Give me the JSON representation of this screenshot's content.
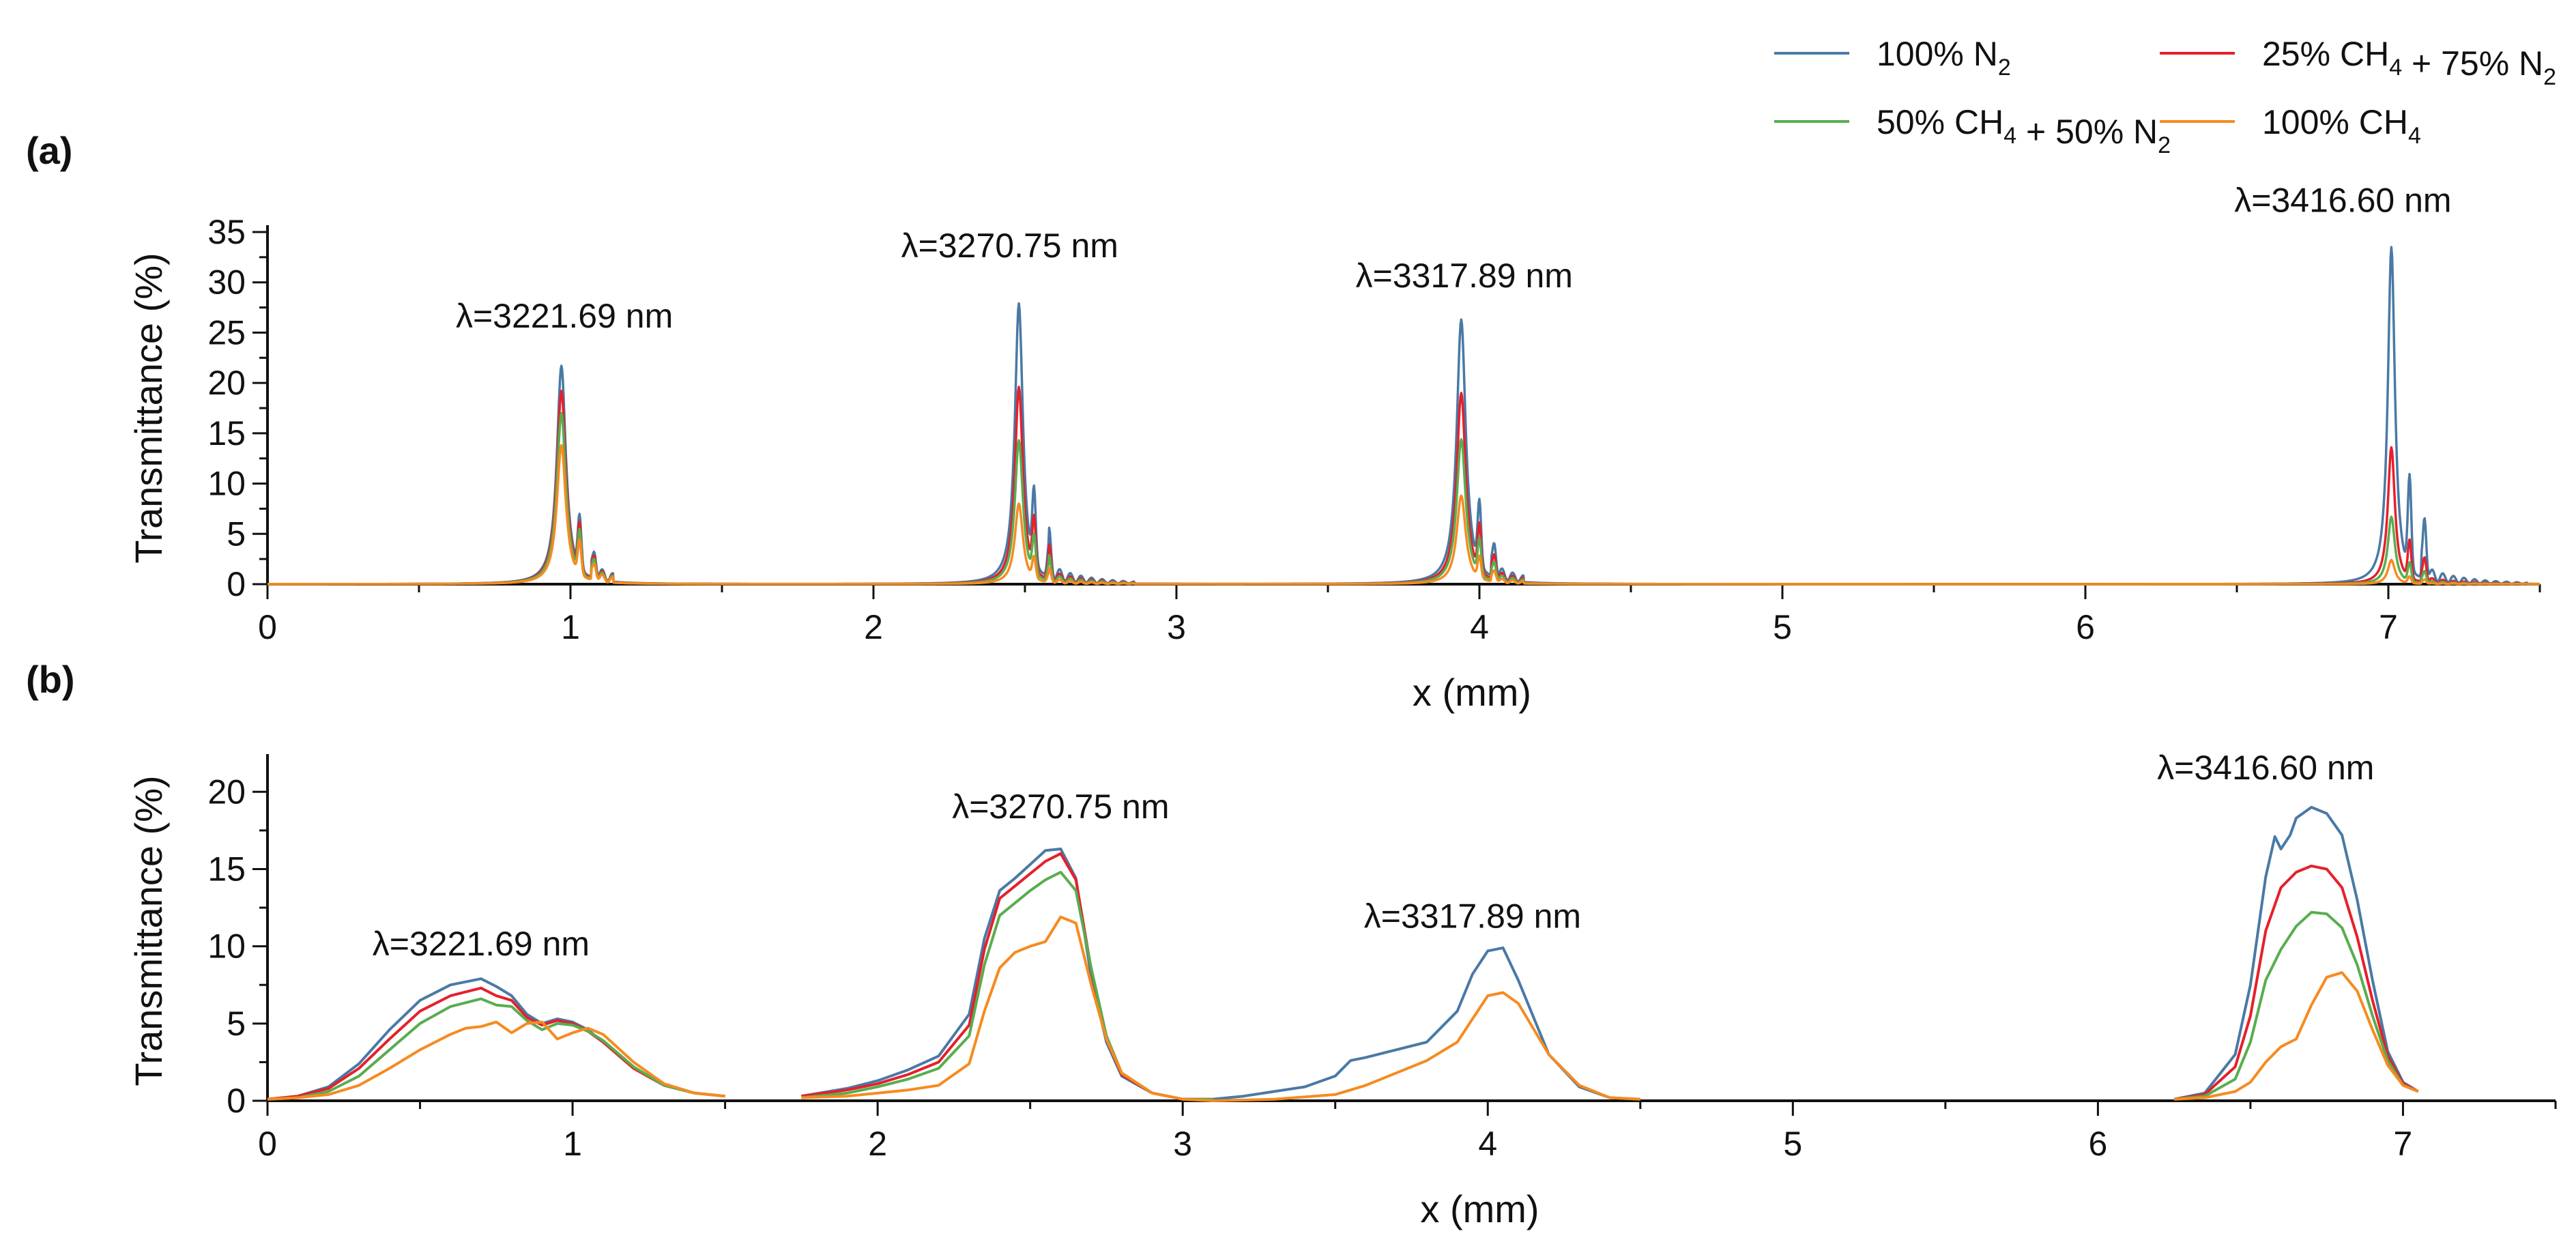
{
  "legend": {
    "items": [
      {
        "key": "n2",
        "prefix": "100% N",
        "sub": "2",
        "suffix": "",
        "color": "#4a79a5"
      },
      {
        "key": "mix25",
        "prefix": "25% CH",
        "sub": "4",
        "suffix": " + 75% N",
        "sub2": "2",
        "color": "#e5202b"
      },
      {
        "key": "mix50",
        "prefix": "50% CH",
        "sub": "4",
        "suffix": " + 50% N",
        "sub2": "2",
        "color": "#58ad4f"
      },
      {
        "key": "ch4",
        "prefix": "100% CH",
        "sub": "4",
        "suffix": "",
        "color": "#f68b1f"
      }
    ]
  },
  "chart_data": [
    {
      "type": "line",
      "panel_label": "(a)",
      "xlabel": "x (mm)",
      "ylabel": "Transmittance (%)",
      "xlim": [
        0,
        7.5
      ],
      "ylim": [
        0,
        35
      ],
      "xticks": [
        0,
        1,
        2,
        3,
        4,
        5,
        6,
        7
      ],
      "yticks": [
        0,
        5,
        10,
        15,
        20,
        25,
        30,
        35
      ],
      "annotations": [
        {
          "text": "λ=3221.69 nm",
          "x": 0.98,
          "y": 25.5
        },
        {
          "text": "λ=3270.75 nm",
          "x": 2.45,
          "y": 32.5
        },
        {
          "text": "λ=3317.89 nm",
          "x": 3.95,
          "y": 29.5
        },
        {
          "text": "λ=3416.60 nm",
          "x": 6.85,
          "y": 37.0
        }
      ],
      "peaks": [
        {
          "center": 0.97,
          "width": 0.018,
          "values": {
            "n2": 21.7,
            "mix25": 19.2,
            "mix50": 17.0,
            "ch4": 13.8
          },
          "side": [
            1.03,
            5.2,
            1.08,
            2.0
          ],
          "ringing": 2
        },
        {
          "center": 2.48,
          "width": 0.016,
          "values": {
            "n2": 27.9,
            "mix25": 19.6,
            "mix50": 14.3,
            "ch4": 8.0
          },
          "side": [
            2.53,
            7.2,
            2.58,
            3.5
          ],
          "ringing": 8
        },
        {
          "center": 3.94,
          "width": 0.018,
          "values": {
            "n2": 26.3,
            "mix25": 19.0,
            "mix50": 14.4,
            "ch4": 8.8
          },
          "side": [
            4.0,
            6.3,
            4.05,
            2.8
          ],
          "ringing": 3
        },
        {
          "center": 7.01,
          "width": 0.014,
          "values": {
            "n2": 33.5,
            "mix25": 13.6,
            "mix50": 6.7,
            "ch4": 2.4
          },
          "side": [
            7.07,
            9.2,
            7.12,
            5.5
          ],
          "ringing": 10
        }
      ]
    },
    {
      "type": "line",
      "panel_label": "(b)",
      "xlabel": "x (mm)",
      "ylabel": "Transmittance (%)",
      "xlim": [
        0,
        7.5
      ],
      "ylim": [
        0,
        22
      ],
      "xticks": [
        0,
        1,
        2,
        3,
        4,
        5,
        6,
        7
      ],
      "yticks": [
        0,
        5,
        10,
        15,
        20
      ],
      "annotations": [
        {
          "text": "λ=3221.69 nm",
          "x": 0.7,
          "y": 9.4
        },
        {
          "text": "λ=3270.75 nm",
          "x": 2.6,
          "y": 18.3
        },
        {
          "text": "λ=3317.89 nm",
          "x": 3.95,
          "y": 11.2
        },
        {
          "text": "λ=3416.60 nm",
          "x": 6.55,
          "y": 20.8
        }
      ],
      "series": [
        {
          "key": "n2",
          "name": "100% N2",
          "segments": [
            {
              "x": [
                0,
                0.1,
                0.2,
                0.3,
                0.4,
                0.5,
                0.6,
                0.7,
                0.75,
                0.8,
                0.85,
                0.9,
                0.95,
                1.0,
                1.05,
                1.1,
                1.2,
                1.3,
                1.4,
                1.5
              ],
              "y": [
                0.1,
                0.3,
                0.9,
                2.4,
                4.6,
                6.5,
                7.5,
                7.9,
                7.4,
                6.8,
                5.6,
                5.0,
                5.3,
                5.1,
                4.6,
                3.8,
                2.1,
                1.0,
                0.5,
                0.3
              ]
            },
            {
              "x": [
                1.75,
                1.9,
                2.0,
                2.1,
                2.2,
                2.3,
                2.35,
                2.4,
                2.45,
                2.5,
                2.55,
                2.6,
                2.65,
                2.7,
                2.75,
                2.8,
                2.9,
                3.0,
                3.1,
                3.2,
                3.3,
                3.4,
                3.5,
                3.55,
                3.6,
                3.7,
                3.8,
                3.9,
                3.95,
                4.0,
                4.05,
                4.1,
                4.2,
                4.3,
                4.4,
                4.5
              ],
              "y": [
                0.3,
                0.8,
                1.3,
                2.0,
                2.9,
                5.6,
                10.5,
                13.6,
                14.4,
                15.3,
                16.2,
                16.3,
                14.4,
                8.0,
                3.8,
                1.6,
                0.5,
                0.1,
                0.1,
                0.3,
                0.6,
                0.9,
                1.6,
                2.6,
                2.8,
                3.3,
                3.8,
                5.8,
                8.2,
                9.7,
                9.9,
                7.8,
                3.0,
                0.9,
                0.2,
                0.1
              ]
            },
            {
              "x": [
                6.25,
                6.35,
                6.45,
                6.5,
                6.55,
                6.58,
                6.6,
                6.63,
                6.65,
                6.7,
                6.75,
                6.8,
                6.85,
                6.9,
                6.95,
                7.0,
                7.05
              ],
              "y": [
                0.1,
                0.5,
                3.0,
                7.5,
                14.5,
                17.1,
                16.3,
                17.2,
                18.3,
                19.0,
                18.6,
                17.2,
                13.0,
                7.8,
                3.2,
                1.2,
                0.6
              ]
            }
          ]
        },
        {
          "key": "mix25",
          "name": "25% CH4 + 75% N2",
          "segments": [
            {
              "x": [
                0,
                0.1,
                0.2,
                0.3,
                0.4,
                0.5,
                0.6,
                0.7,
                0.75,
                0.8,
                0.85,
                0.9,
                0.95,
                1.0,
                1.05,
                1.1,
                1.2,
                1.3,
                1.4,
                1.5
              ],
              "y": [
                0.1,
                0.3,
                0.8,
                2.1,
                4.0,
                5.8,
                6.8,
                7.3,
                6.8,
                6.5,
                5.4,
                4.9,
                5.2,
                5.0,
                4.5,
                3.8,
                2.1,
                1.0,
                0.5,
                0.3
              ]
            },
            {
              "x": [
                1.75,
                1.9,
                2.0,
                2.1,
                2.2,
                2.3,
                2.35,
                2.4,
                2.45,
                2.5,
                2.55,
                2.6,
                2.65,
                2.7,
                2.75,
                2.8,
                2.9,
                3.0,
                3.1
              ],
              "y": [
                0.3,
                0.7,
                1.1,
                1.7,
                2.5,
                4.9,
                9.8,
                13.1,
                13.9,
                14.7,
                15.5,
                16.0,
                14.3,
                8.5,
                4.0,
                1.7,
                0.5,
                0.1,
                0.1
              ]
            },
            {
              "x": [
                6.25,
                6.35,
                6.45,
                6.5,
                6.55,
                6.6,
                6.65,
                6.7,
                6.75,
                6.8,
                6.85,
                6.9,
                6.95,
                7.0,
                7.05
              ],
              "y": [
                0.1,
                0.4,
                2.2,
                5.5,
                11.0,
                13.8,
                14.8,
                15.2,
                15.0,
                13.8,
                10.6,
                6.5,
                2.9,
                1.1,
                0.6
              ]
            }
          ]
        },
        {
          "key": "mix50",
          "name": "50% CH4 + 50% N2",
          "segments": [
            {
              "x": [
                0,
                0.1,
                0.2,
                0.3,
                0.4,
                0.5,
                0.6,
                0.7,
                0.75,
                0.8,
                0.85,
                0.9,
                0.95,
                1.0,
                1.05,
                1.1,
                1.2,
                1.3,
                1.4,
                1.5
              ],
              "y": [
                0.1,
                0.2,
                0.6,
                1.6,
                3.3,
                5.0,
                6.1,
                6.6,
                6.2,
                6.1,
                5.2,
                4.6,
                5.0,
                4.9,
                4.5,
                3.9,
                2.2,
                1.0,
                0.5,
                0.3
              ]
            },
            {
              "x": [
                1.75,
                1.9,
                2.0,
                2.1,
                2.2,
                2.3,
                2.35,
                2.4,
                2.45,
                2.5,
                2.55,
                2.6,
                2.65,
                2.7,
                2.75,
                2.8,
                2.9,
                3.0,
                3.1
              ],
              "y": [
                0.2,
                0.5,
                0.9,
                1.4,
                2.1,
                4.2,
                8.8,
                12.0,
                12.8,
                13.6,
                14.3,
                14.8,
                13.6,
                8.6,
                4.2,
                1.8,
                0.5,
                0.1,
                0.1
              ]
            },
            {
              "x": [
                6.25,
                6.35,
                6.45,
                6.5,
                6.55,
                6.6,
                6.65,
                6.7,
                6.75,
                6.8,
                6.85,
                6.9,
                6.95,
                7.0,
                7.05
              ],
              "y": [
                0.1,
                0.3,
                1.4,
                3.8,
                7.8,
                9.8,
                11.3,
                12.2,
                12.1,
                11.2,
                8.8,
                5.5,
                2.6,
                1.0,
                0.6
              ]
            }
          ]
        },
        {
          "key": "ch4",
          "name": "100% CH4",
          "segments": [
            {
              "x": [
                0,
                0.1,
                0.2,
                0.3,
                0.4,
                0.5,
                0.6,
                0.65,
                0.7,
                0.75,
                0.8,
                0.85,
                0.9,
                0.95,
                1.0,
                1.05,
                1.1,
                1.2,
                1.3,
                1.4,
                1.5
              ],
              "y": [
                0.1,
                0.2,
                0.4,
                1.0,
                2.1,
                3.3,
                4.3,
                4.7,
                4.8,
                5.1,
                4.4,
                5.0,
                5.1,
                4.0,
                4.4,
                4.7,
                4.3,
                2.5,
                1.1,
                0.5,
                0.3
              ]
            },
            {
              "x": [
                1.75,
                1.9,
                2.0,
                2.1,
                2.2,
                2.3,
                2.35,
                2.4,
                2.45,
                2.5,
                2.55,
                2.6,
                2.65,
                2.7,
                2.75,
                2.8,
                2.9,
                3.0,
                3.1,
                3.3,
                3.5,
                3.6,
                3.7,
                3.8,
                3.9,
                3.95,
                4.0,
                4.05,
                4.1,
                4.2,
                4.3,
                4.4,
                4.5
              ],
              "y": [
                0.2,
                0.3,
                0.5,
                0.7,
                1.0,
                2.4,
                5.8,
                8.6,
                9.6,
                10.0,
                10.3,
                11.9,
                11.5,
                7.5,
                4.0,
                1.8,
                0.5,
                0.1,
                0.0,
                0.1,
                0.4,
                1.0,
                1.8,
                2.6,
                3.8,
                5.3,
                6.8,
                7.0,
                6.3,
                3.0,
                1.0,
                0.2,
                0.1
              ]
            },
            {
              "x": [
                6.25,
                6.35,
                6.45,
                6.5,
                6.55,
                6.6,
                6.65,
                6.7,
                6.75,
                6.8,
                6.85,
                6.9,
                6.95,
                7.0,
                7.05
              ],
              "y": [
                0.1,
                0.2,
                0.6,
                1.2,
                2.5,
                3.5,
                4.0,
                6.2,
                8.0,
                8.3,
                7.1,
                4.6,
                2.3,
                1.0,
                0.6
              ]
            }
          ]
        }
      ]
    }
  ]
}
